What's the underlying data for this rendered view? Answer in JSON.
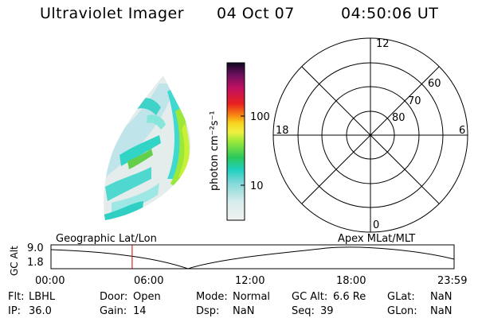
{
  "header": {
    "instrument": "Ultraviolet Imager",
    "date": "04 Oct 07",
    "time": "04:50:06 UT"
  },
  "colorbar": {
    "unit_label": "photon cm⁻²s⁻¹",
    "ticks": [
      "100",
      "10"
    ]
  },
  "polar_plot": {
    "mlt_labels": {
      "top": "12",
      "left": "18",
      "right": "6",
      "bottom": "0"
    },
    "lat_labels": [
      "60",
      "70",
      "80"
    ]
  },
  "timeline": {
    "left_title": "Geographic Lat/Lon",
    "right_title": "Apex  MLat/MLT",
    "axis_label": "GC Alt",
    "y_ticks": [
      "9.0",
      "1.8"
    ],
    "x_ticks": [
      "00:00",
      "06:00",
      "12:00",
      "18:00",
      "23:59"
    ],
    "current_time_fraction": 0.2014,
    "colors": {
      "marker": "#cc0000",
      "curve": "#000000"
    }
  },
  "info": {
    "flt_label": "Flt:",
    "flt_value": "LBHL",
    "ip_label": "IP:",
    "ip_value": "36.0",
    "door_label": "Door:",
    "door_value": "Open",
    "gain_label": "Gain:",
    "gain_value": "14",
    "mode_label": "Mode:",
    "mode_value": "Normal",
    "dsp_label": "Dsp:",
    "dsp_value": "NaN",
    "gcalt_label": "GC Alt:",
    "gcalt_value": "6.6 Re",
    "seq_label": "Seq:",
    "seq_value": "39",
    "glat_label": "GLat:",
    "glat_value": "NaN",
    "glon_label": "GLon:",
    "glon_value": "NaN"
  }
}
